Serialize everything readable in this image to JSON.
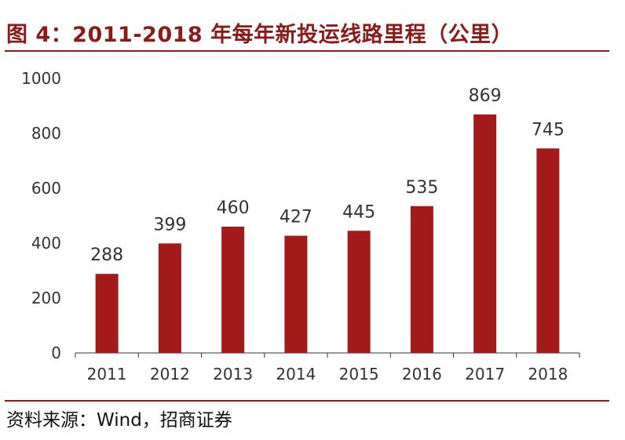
{
  "title": "图 4：2011-2018 年每年新投运线路里程（公里）",
  "source": "资料来源：Wind，招商证券",
  "colors": {
    "bar": "#a31a1a",
    "accent": "#8b1a1a",
    "axis": "#333333",
    "text": "#333333"
  },
  "chart_data": {
    "type": "bar",
    "title": "图 4：2011-2018 年每年新投运线路里程（公里）",
    "xlabel": "",
    "ylabel": "",
    "categories": [
      "2011",
      "2012",
      "2013",
      "2014",
      "2015",
      "2016",
      "2017",
      "2018"
    ],
    "values": [
      288,
      399,
      460,
      427,
      445,
      535,
      869,
      745
    ],
    "ylim": [
      0,
      1000
    ],
    "yticks": [
      0,
      200,
      400,
      600,
      800,
      1000
    ],
    "grid": false,
    "legend": "none",
    "data_labels": true
  }
}
